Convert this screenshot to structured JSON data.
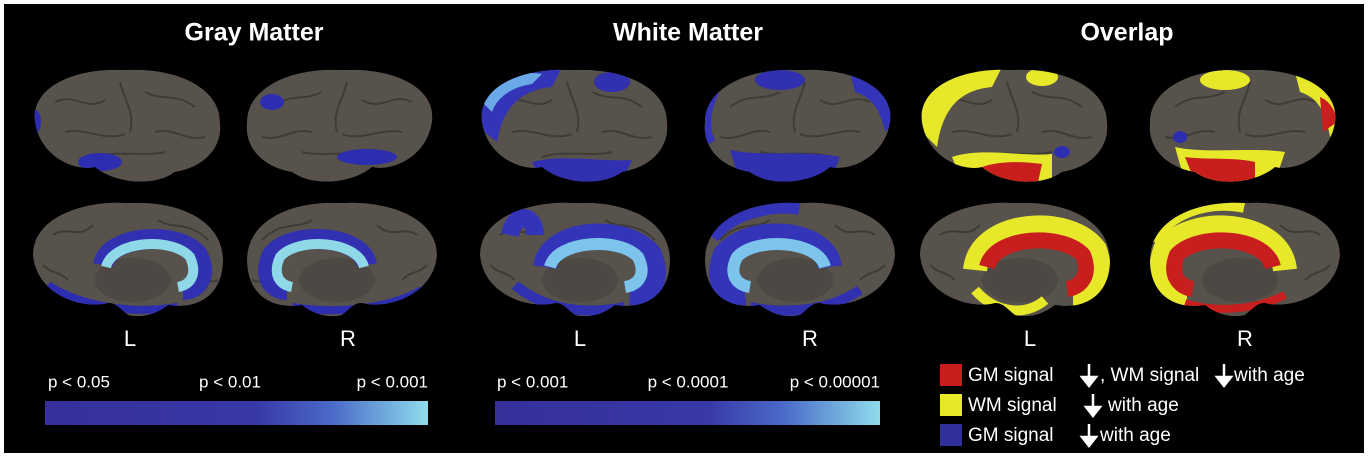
{
  "panels": [
    {
      "title": "Gray Matter",
      "hemispheres": [
        "L",
        "R"
      ],
      "scale_labels": [
        "p < 0.05",
        "p < 0.01",
        "p < 0.001"
      ]
    },
    {
      "title": "White Matter",
      "hemispheres": [
        "L",
        "R"
      ],
      "scale_labels": [
        "p < 0.001",
        "p < 0.0001",
        "p < 0.00001"
      ]
    },
    {
      "title": "Overlap",
      "hemispheres": [
        "L",
        "R"
      ]
    }
  ],
  "legend": [
    {
      "parts": [
        "GM signal",
        ", WM signal",
        "with age"
      ]
    },
    {
      "parts": [
        "WM signal",
        "with age"
      ]
    },
    {
      "parts": [
        "GM signal",
        "with age"
      ]
    }
  ]
}
